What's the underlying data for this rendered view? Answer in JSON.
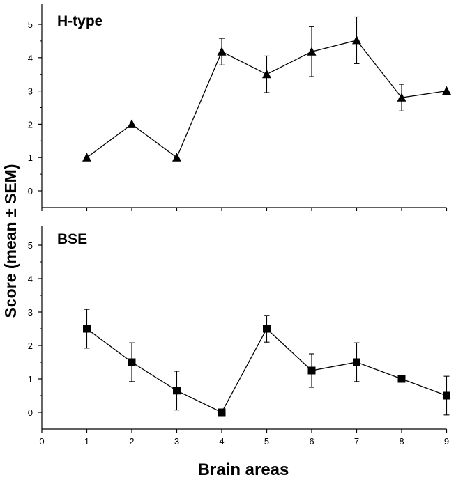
{
  "chart_data": [
    {
      "type": "line",
      "title": "H-type",
      "marker": "triangle",
      "x": [
        1,
        2,
        3,
        4,
        5,
        6,
        7,
        8,
        9
      ],
      "y": [
        1.0,
        2.0,
        1.0,
        4.18,
        3.5,
        4.18,
        4.52,
        2.8,
        3.0
      ],
      "sem": [
        null,
        null,
        null,
        0.4,
        0.55,
        0.75,
        0.7,
        0.4,
        null
      ],
      "ylim": [
        0,
        5
      ],
      "yticks": [
        "0",
        "1",
        "2",
        "3",
        "4",
        "5"
      ]
    },
    {
      "type": "line",
      "title": "BSE",
      "marker": "square",
      "x": [
        1,
        2,
        3,
        4,
        5,
        6,
        7,
        8,
        9
      ],
      "y": [
        2.5,
        1.5,
        0.65,
        0.0,
        2.5,
        1.25,
        1.5,
        1.0,
        0.5
      ],
      "sem": [
        0.58,
        0.58,
        0.58,
        null,
        0.4,
        0.5,
        0.58,
        null,
        0.58
      ],
      "ylim": [
        0,
        5
      ],
      "yticks": [
        "0",
        "1",
        "2",
        "3",
        "4",
        "5"
      ]
    }
  ],
  "shared_axes": {
    "xlabel": "Brain areas",
    "ylabel": "Score (mean ± SEM)",
    "xlim": [
      0,
      9
    ],
    "xticks": [
      "0",
      "1",
      "2",
      "3",
      "4",
      "5",
      "6",
      "7",
      "8",
      "9"
    ]
  },
  "colors": {
    "ink": "#000000",
    "background": "#ffffff"
  }
}
